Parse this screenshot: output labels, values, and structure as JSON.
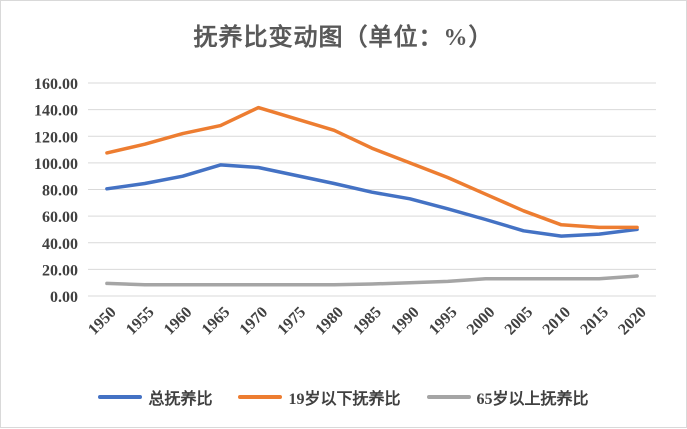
{
  "chart_data": {
    "type": "line",
    "title": "抚养比变动图（单位：%）",
    "xlabel": "",
    "ylabel": "",
    "x": [
      "1950",
      "1955",
      "1960",
      "1965",
      "1970",
      "1975",
      "1980",
      "1985",
      "1990",
      "1995",
      "2000",
      "2005",
      "2010",
      "2015",
      "2020"
    ],
    "ylim": [
      0,
      160
    ],
    "yticks": [
      "0.00",
      "20.00",
      "40.00",
      "60.00",
      "80.00",
      "100.00",
      "120.00",
      "140.00",
      "160.00"
    ],
    "grid": true,
    "legend_position": "bottom",
    "series": [
      {
        "name": "总抚养比",
        "color": "#4472C4",
        "values": [
          80.5,
          84.5,
          90.0,
          98.5,
          96.5,
          90.5,
          84.5,
          78.0,
          73.0,
          65.5,
          57.5,
          49.0,
          45.0,
          46.5,
          50.0
        ]
      },
      {
        "name": "19岁以下抚养比",
        "color": "#ED7D31",
        "values": [
          107.5,
          114.0,
          122.0,
          128.0,
          141.5,
          133.0,
          124.5,
          111.0,
          100.0,
          89.0,
          76.5,
          64.0,
          53.5,
          51.5,
          51.5
        ]
      },
      {
        "name": "65岁以上抚养比",
        "color": "#A5A5A5",
        "values": [
          9.5,
          8.5,
          8.5,
          8.5,
          8.5,
          8.5,
          8.5,
          9.0,
          10.0,
          11.0,
          13.0,
          13.0,
          13.0,
          13.0,
          15.0
        ]
      }
    ]
  }
}
